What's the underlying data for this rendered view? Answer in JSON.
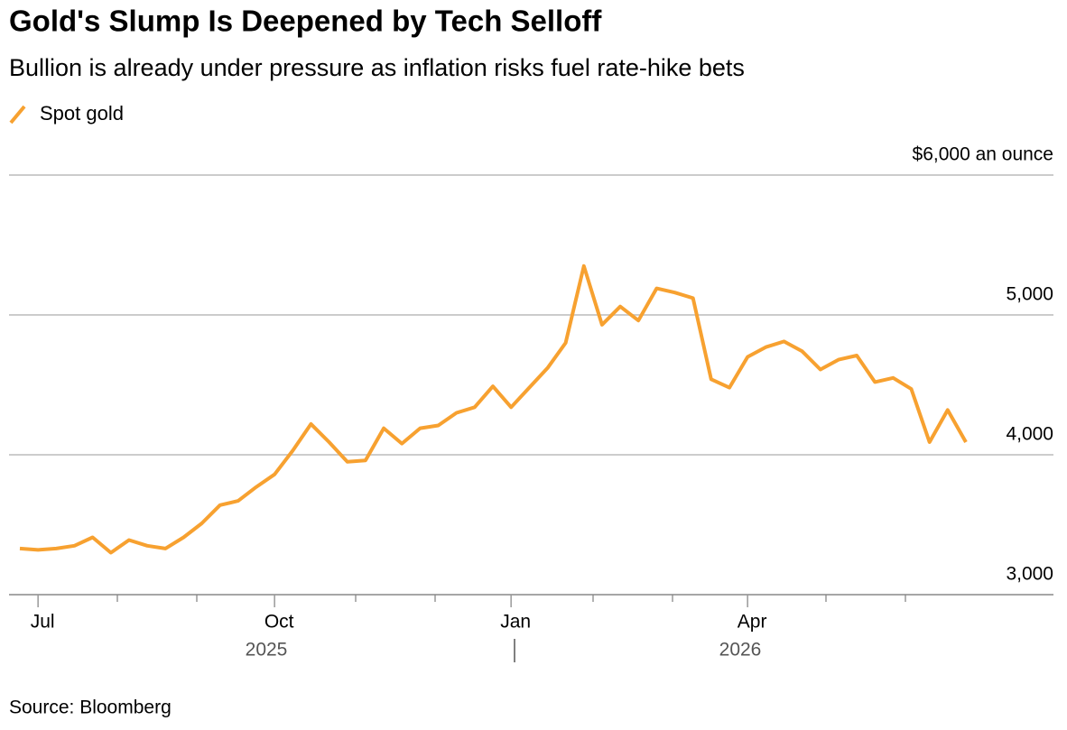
{
  "chart_data": {
    "type": "line",
    "title": "Gold's Slump Is Deepened by Tech Selloff",
    "subtitle": "Bullion is already under pressure as inflation risks fuel rate-hike bets",
    "source": "Source: Bloomberg",
    "categories": [
      null,
      "Jul",
      null,
      null,
      null,
      null,
      null,
      null,
      null,
      null,
      null,
      null,
      null,
      null,
      "Oct",
      null,
      null,
      null,
      null,
      null,
      null,
      null,
      null,
      null,
      null,
      null,
      null,
      "Jan",
      null,
      null,
      null,
      null,
      null,
      null,
      null,
      null,
      null,
      null,
      null,
      null,
      "Apr",
      null,
      null,
      null,
      null,
      null,
      null,
      null,
      null,
      null,
      null,
      null,
      null
    ],
    "year_labels": [
      "2025",
      "2026"
    ],
    "series": [
      {
        "name": "Spot gold",
        "color": "#f7a130",
        "values": [
          3330,
          3320,
          3330,
          3350,
          3410,
          3300,
          3390,
          3350,
          3330,
          3410,
          3510,
          3640,
          3670,
          3770,
          3860,
          4030,
          4220,
          4090,
          3950,
          3960,
          4190,
          4080,
          4190,
          4210,
          4300,
          4340,
          4490,
          4340,
          4480,
          4620,
          4800,
          5350,
          4930,
          5060,
          4960,
          5190,
          5160,
          5120,
          4540,
          4480,
          4700,
          4770,
          4810,
          4740,
          4610,
          4680,
          4710,
          4520,
          4550,
          4470,
          4090,
          4320,
          4090
        ]
      }
    ],
    "ylim": [
      3000,
      6000
    ],
    "yticks": [
      3000,
      4000,
      5000,
      {
        "value": 6000,
        "label": "$6,000 an ounce"
      }
    ],
    "yticks_labels": [
      "3,000",
      "4,000",
      "5,000"
    ],
    "grid": true
  }
}
